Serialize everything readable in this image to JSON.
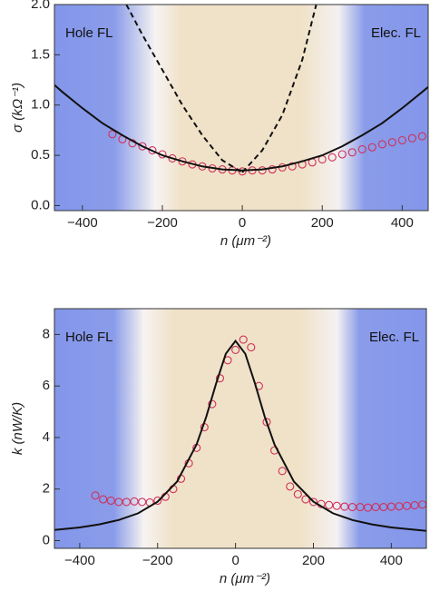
{
  "chart_data": [
    {
      "type": "scatter",
      "xlabel": "n (μm⁻²)",
      "ylabel": "σ (kΩ⁻¹)",
      "annotations": [
        "Hole FL",
        "Elec. FL"
      ],
      "xlim": [
        -470,
        465
      ],
      "ylim": [
        -0.05,
        2.0
      ],
      "xticks": [
        {
          "value": -400,
          "label": "−400"
        },
        {
          "value": -200,
          "label": "−200"
        },
        0,
        200,
        400
      ],
      "yticks": [
        {
          "value": 0,
          "label": "0.0"
        },
        {
          "value": 0.5,
          "label": "0.5"
        },
        {
          "value": 1,
          "label": "1.0"
        },
        {
          "value": 1.5,
          "label": "1.5"
        },
        {
          "value": 2,
          "label": "2.0"
        }
      ],
      "series": [
        {
          "kind": "markers",
          "color": "#d0305a",
          "x": [
            -325,
            -300,
            -275,
            -250,
            -225,
            -200,
            -175,
            -150,
            -125,
            -100,
            -75,
            -50,
            -25,
            0,
            25,
            50,
            75,
            100,
            125,
            150,
            175,
            200,
            225,
            250,
            275,
            300,
            325,
            350,
            375,
            400,
            425,
            450
          ],
          "values": [
            0.71,
            0.66,
            0.62,
            0.59,
            0.55,
            0.51,
            0.47,
            0.44,
            0.41,
            0.39,
            0.37,
            0.36,
            0.35,
            0.34,
            0.35,
            0.35,
            0.36,
            0.38,
            0.39,
            0.41,
            0.43,
            0.46,
            0.48,
            0.51,
            0.53,
            0.56,
            0.58,
            0.61,
            0.63,
            0.65,
            0.67,
            0.69
          ]
        },
        {
          "kind": "solid",
          "color": "#111111",
          "x": [
            -470,
            -450,
            -400,
            -350,
            -300,
            -250,
            -200,
            -150,
            -100,
            -50,
            0,
            50,
            100,
            150,
            200,
            250,
            300,
            350,
            400,
            450,
            465
          ],
          "values": [
            1.2,
            1.13,
            0.97,
            0.82,
            0.7,
            0.59,
            0.5,
            0.44,
            0.39,
            0.36,
            0.35,
            0.36,
            0.39,
            0.44,
            0.5,
            0.59,
            0.7,
            0.82,
            0.97,
            1.13,
            1.18
          ]
        },
        {
          "kind": "dashed",
          "color": "#111111",
          "x": [
            -290,
            -250,
            -200,
            -150,
            -100,
            -50,
            0
          ],
          "values": [
            2.0,
            1.7,
            1.35,
            1.0,
            0.7,
            0.45,
            0.33
          ]
        },
        {
          "kind": "dashed",
          "color": "#111111",
          "x": [
            0,
            50,
            100,
            150,
            185
          ],
          "values": [
            0.33,
            0.55,
            0.9,
            1.45,
            2.0
          ]
        }
      ]
    },
    {
      "type": "scatter",
      "xlabel": "n (μm⁻²)",
      "ylabel": "k (nW/K)",
      "annotations": [
        "Hole FL",
        "Elec. FL"
      ],
      "xlim": [
        -465,
        490
      ],
      "ylim": [
        -0.3,
        9
      ],
      "xticks": [
        {
          "value": -400,
          "label": "−400"
        },
        {
          "value": -200,
          "label": "−200"
        },
        0,
        200,
        400
      ],
      "yticks": [
        0,
        2,
        4,
        6,
        8
      ],
      "series": [
        {
          "kind": "markers",
          "color": "#d0305a",
          "x": [
            -360,
            -340,
            -320,
            -300,
            -280,
            -260,
            -240,
            -220,
            -200,
            -180,
            -160,
            -140,
            -120,
            -100,
            -80,
            -60,
            -40,
            -20,
            0,
            20,
            40,
            60,
            80,
            100,
            120,
            140,
            160,
            180,
            200,
            220,
            240,
            260,
            280,
            300,
            320,
            340,
            360,
            380,
            400,
            420,
            440,
            460,
            480
          ],
          "values": [
            1.75,
            1.6,
            1.55,
            1.5,
            1.5,
            1.52,
            1.5,
            1.48,
            1.55,
            1.7,
            2.0,
            2.4,
            3.0,
            3.6,
            4.4,
            5.3,
            6.3,
            7.0,
            7.4,
            7.8,
            7.5,
            6.0,
            4.6,
            3.5,
            2.7,
            2.1,
            1.8,
            1.6,
            1.5,
            1.42,
            1.38,
            1.35,
            1.32,
            1.3,
            1.3,
            1.28,
            1.3,
            1.3,
            1.32,
            1.33,
            1.35,
            1.37,
            1.4
          ]
        },
        {
          "kind": "solid",
          "color": "#111111",
          "x": [
            -465,
            -400,
            -350,
            -300,
            -250,
            -200,
            -150,
            -100,
            -75,
            -50,
            -25,
            0,
            25,
            50,
            75,
            100,
            150,
            200,
            250,
            300,
            350,
            400,
            490
          ],
          "values": [
            0.41,
            0.51,
            0.63,
            0.8,
            1.06,
            1.51,
            2.29,
            3.73,
            4.81,
            6.09,
            7.25,
            7.75,
            7.25,
            6.09,
            4.81,
            3.73,
            2.29,
            1.51,
            1.06,
            0.8,
            0.63,
            0.51,
            0.38
          ]
        }
      ]
    }
  ]
}
